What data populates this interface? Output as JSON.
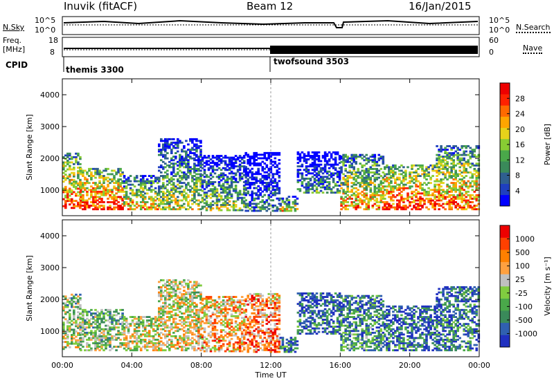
{
  "header": {
    "station": "Inuvik (fitACF)",
    "beam": "Beam 12",
    "date": "16/Jan/2015"
  },
  "status_panel": {
    "nsky_label": "N.Sky",
    "nsky_ticks": [
      "10^5",
      "10^0"
    ],
    "nsearch_label": "N.Search",
    "nsearch_ticks": [
      "10^5",
      "10^0"
    ],
    "freq_label": "Freq.",
    "freq_unit": "[MHz]",
    "freq_ticks": [
      "18",
      "8"
    ],
    "nave_label": "Nave",
    "nave_ticks": [
      "60",
      "0"
    ],
    "cpid_label": "CPID",
    "programs": [
      {
        "name": "themis 3300",
        "start_hour": 0
      },
      {
        "name": "twofsound 3503",
        "start_hour": 12
      }
    ]
  },
  "chart_data": [
    {
      "type": "heatmap",
      "title": "",
      "xlabel": "",
      "ylabel": "Slant Range [km]",
      "xlim": [
        0,
        24
      ],
      "ylim": [
        200,
        4500
      ],
      "x_ticks": [
        "00:00",
        "04:00",
        "08:00",
        "12:00",
        "16:00",
        "20:00",
        "00:00"
      ],
      "y_ticks": [
        1000,
        2000,
        3000,
        4000
      ],
      "colorbar": {
        "label": "Power [dB]",
        "ticks": [
          "28",
          "24",
          "20",
          "16",
          "12",
          "8",
          "4"
        ],
        "colors": [
          "#0000ff",
          "#1f3fbf",
          "#2f5f8f",
          "#3a8a5a",
          "#4aa84a",
          "#88cc33",
          "#e6d21a",
          "#ffa500",
          "#ff6a00",
          "#ff2200",
          "#ee0000"
        ]
      },
      "bands": [
        {
          "start": 0.0,
          "end": 1.0,
          "low": 420,
          "high": 2150,
          "value": 0.85
        },
        {
          "start": 1.0,
          "end": 3.5,
          "low": 380,
          "high": 1700,
          "value": 0.9
        },
        {
          "start": 3.5,
          "end": 5.5,
          "low": 380,
          "high": 1450,
          "value": 0.7
        },
        {
          "start": 5.5,
          "end": 8.0,
          "low": 380,
          "high": 2600,
          "value": 0.55
        },
        {
          "start": 8.0,
          "end": 10.5,
          "low": 350,
          "high": 2100,
          "value": 0.5
        },
        {
          "start": 10.5,
          "end": 12.5,
          "low": 330,
          "high": 2200,
          "value": 0.3
        },
        {
          "start": 12.5,
          "end": 13.5,
          "low": 330,
          "high": 800,
          "value": 0.6
        },
        {
          "start": 13.5,
          "end": 16.0,
          "low": 900,
          "high": 2200,
          "value": 0.35
        },
        {
          "start": 16.0,
          "end": 18.5,
          "low": 380,
          "high": 2100,
          "value": 0.75
        },
        {
          "start": 18.5,
          "end": 21.5,
          "low": 380,
          "high": 1800,
          "value": 0.9
        },
        {
          "start": 21.5,
          "end": 24.0,
          "low": 380,
          "high": 2400,
          "value": 0.8
        }
      ]
    },
    {
      "type": "heatmap",
      "title": "",
      "xlabel": "Time UT",
      "ylabel": "Slant Range [km]",
      "xlim": [
        0,
        24
      ],
      "ylim": [
        200,
        4500
      ],
      "x_ticks": [
        "00:00",
        "04:00",
        "08:00",
        "12:00",
        "16:00",
        "20:00",
        "00:00"
      ],
      "y_ticks": [
        1000,
        2000,
        3000,
        4000
      ],
      "colorbar": {
        "label": "Velocity [m s⁻¹]",
        "ticks": [
          "1000",
          "500",
          "100",
          "25",
          "-25",
          "-100",
          "-500",
          "-1000"
        ],
        "colors": [
          "#2030c0",
          "#3060b0",
          "#3a8a5a",
          "#4aa84a",
          "#80cc40",
          "#c0c0c0",
          "#ffa040",
          "#ff8000",
          "#ff4000",
          "#ee0000"
        ]
      },
      "bands": [
        {
          "start": 0.0,
          "end": 1.0,
          "low": 420,
          "high": 2150,
          "value": 0.5
        },
        {
          "start": 1.0,
          "end": 3.5,
          "low": 380,
          "high": 1700,
          "value": 0.45
        },
        {
          "start": 3.5,
          "end": 5.5,
          "low": 380,
          "high": 1450,
          "value": 0.55
        },
        {
          "start": 5.5,
          "end": 8.0,
          "low": 380,
          "high": 2600,
          "value": 0.6
        },
        {
          "start": 8.0,
          "end": 10.5,
          "low": 350,
          "high": 2100,
          "value": 0.7
        },
        {
          "start": 10.5,
          "end": 12.5,
          "low": 330,
          "high": 2200,
          "value": 0.8
        },
        {
          "start": 12.5,
          "end": 13.5,
          "low": 330,
          "high": 800,
          "value": 0.25
        },
        {
          "start": 13.5,
          "end": 16.0,
          "low": 900,
          "high": 2200,
          "value": 0.2
        },
        {
          "start": 16.0,
          "end": 18.5,
          "low": 380,
          "high": 2100,
          "value": 0.3
        },
        {
          "start": 18.5,
          "end": 21.5,
          "low": 380,
          "high": 1800,
          "value": 0.2
        },
        {
          "start": 21.5,
          "end": 24.0,
          "low": 380,
          "high": 2400,
          "value": 0.25
        }
      ]
    }
  ]
}
